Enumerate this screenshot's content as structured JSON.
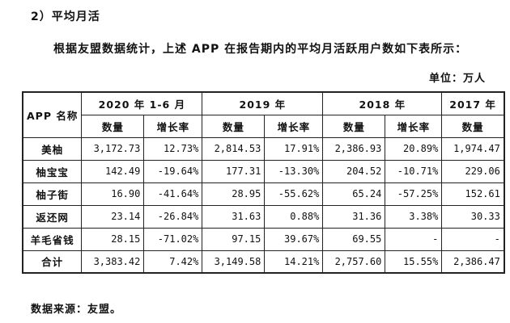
{
  "section": {
    "heading": "2）平均月活"
  },
  "intro": "根据友盟数据统计，上述 APP 在报告期内的平均月活跃用户数如下表所示：",
  "unit_label": "单位：万人",
  "table": {
    "name_header": "APP 名称",
    "periods": [
      "2020 年 1-6 月",
      "2019 年",
      "2018 年",
      "2017 年"
    ],
    "sub_headers": {
      "count": "数量",
      "growth": "增长率"
    },
    "rows": [
      {
        "name": "美柚",
        "cells": [
          "3,172.73",
          "12.73%",
          "2,814.53",
          "17.91%",
          "2,386.93",
          "20.89%",
          "1,974.47"
        ]
      },
      {
        "name": "柚宝宝",
        "cells": [
          "142.49",
          "-19.64%",
          "177.31",
          "-13.30%",
          "204.52",
          "-10.71%",
          "229.06"
        ]
      },
      {
        "name": "柚子街",
        "cells": [
          "16.90",
          "-41.64%",
          "28.95",
          "-55.62%",
          "65.24",
          "-57.25%",
          "152.61"
        ]
      },
      {
        "name": "返还网",
        "cells": [
          "23.14",
          "-26.84%",
          "31.63",
          "0.88%",
          "31.36",
          "3.38%",
          "30.33"
        ]
      },
      {
        "name": "羊毛省钱",
        "cells": [
          "28.15",
          "-71.02%",
          "97.15",
          "39.67%",
          "69.55",
          "-",
          "-"
        ]
      },
      {
        "name": "合计",
        "cells": [
          "3,383.42",
          "7.42%",
          "3,149.58",
          "14.21%",
          "2,757.60",
          "15.55%",
          "2,386.47"
        ]
      }
    ]
  },
  "source_note": "数据来源：友盟。"
}
